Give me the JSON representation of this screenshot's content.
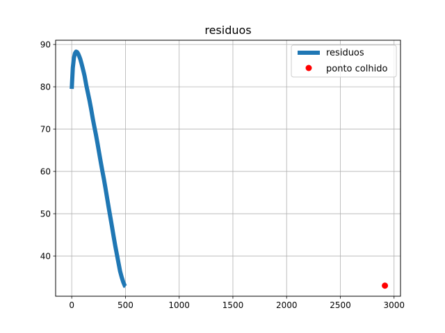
{
  "chart_data": {
    "type": "line",
    "title": "residuos",
    "xlabel": "",
    "ylabel": "",
    "xlim": [
      -150,
      3060
    ],
    "ylim": [
      30.5,
      91
    ],
    "xticks": [
      0,
      500,
      1000,
      1500,
      2000,
      2500,
      3000
    ],
    "yticks": [
      40,
      50,
      60,
      70,
      80,
      90
    ],
    "grid": true,
    "legend_position": "top-right",
    "series": [
      {
        "name": "residuos",
        "kind": "line",
        "color": "#1f77b4",
        "x": [
          0,
          10,
          20,
          30,
          40,
          50,
          60,
          70,
          80,
          90,
          100,
          110,
          120,
          135,
          150,
          165,
          180,
          195,
          210,
          225,
          240,
          255,
          270,
          285,
          300,
          315,
          330,
          345,
          360,
          375,
          390,
          405,
          420,
          435,
          450,
          465,
          480,
          495,
          500
        ],
        "y": [
          79.5,
          84.5,
          86.8,
          87.9,
          88.3,
          88.2,
          87.8,
          87.2,
          86.5,
          85.6,
          84.6,
          83.6,
          82.5,
          80.4,
          78.6,
          76.8,
          74.8,
          72.6,
          70.6,
          68.7,
          66.6,
          64.4,
          62.2,
          60.1,
          58.1,
          55.9,
          53.6,
          51.3,
          49.1,
          46.9,
          44.6,
          42.4,
          40.4,
          38.4,
          36.4,
          35.0,
          33.8,
          32.9,
          32.8
        ]
      },
      {
        "name": "ponto colhido",
        "kind": "point",
        "color": "#ff0000",
        "x": [
          2915
        ],
        "y": [
          33.0
        ]
      }
    ]
  }
}
